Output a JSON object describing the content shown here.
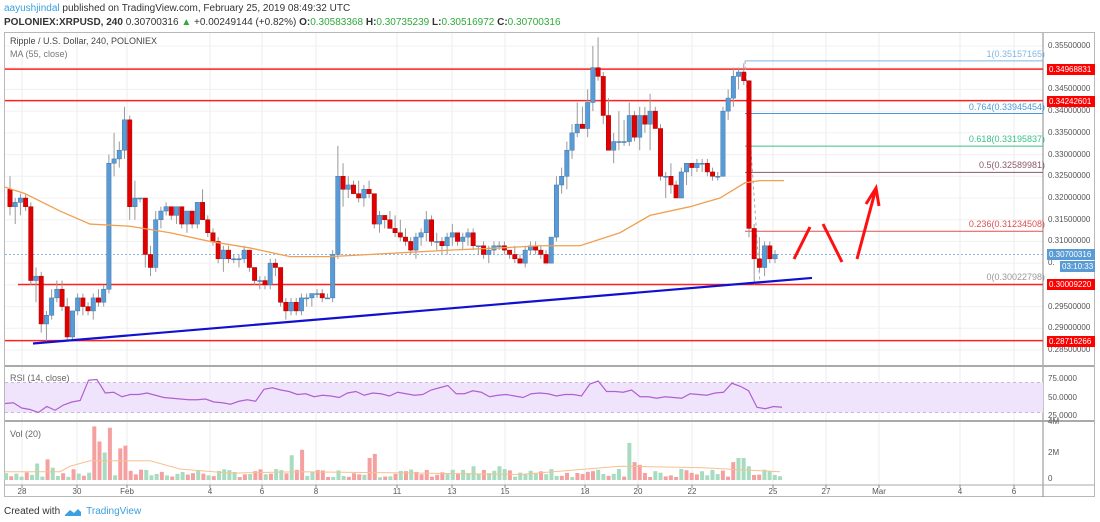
{
  "header": {
    "author": "aayushjindal",
    "published": "published on TradingView.com, February 25, 2019 08:49:32 UTC",
    "symbol": "POLONIEX:XRPUSD, 240",
    "last": "0.30700316",
    "change_arrow": "▲",
    "change": "+0.00249144 (+0.82%)",
    "o_label": "O:",
    "o": "0.30583368",
    "h_label": "H:",
    "h": "0.30735239",
    "l_label": "L:",
    "l": "0.30516972",
    "c_label": "C:",
    "c": "0.30700316"
  },
  "chart": {
    "title": "Ripple / U.S. Dollar, 240, POLONIEX",
    "ma_legend": "MA (55, close)",
    "rsi_legend": "RSI (14, close)",
    "vol_legend": "Vol (20)"
  },
  "price_axis": {
    "ticks": [
      "0.35500000",
      "0.34500000",
      "0.34000000",
      "0.33500000",
      "0.33000000",
      "0.32500000",
      "0.32000000",
      "0.31500000",
      "0.31000000",
      "0.29500000",
      "0.29000000",
      "0.28500000"
    ],
    "tags": [
      {
        "value": "0.34968831",
        "color": "#ff0000"
      },
      {
        "value": "0.34242601",
        "color": "#ff0000"
      },
      {
        "value": "0.30700316",
        "color": "#5b9bd5"
      },
      {
        "value": "03:10:33",
        "color": "#5b9bd5"
      },
      {
        "value": "0.30009220",
        "color": "#ff0000"
      },
      {
        "value": "0.28716266",
        "color": "#ff0000"
      }
    ]
  },
  "fib_levels": [
    {
      "label": "1(0.35157165)",
      "color": "#7fb8e0"
    },
    {
      "label": "0.764(0.33945454)",
      "color": "#4a9ad8"
    },
    {
      "label": "0.618(0.33195837)",
      "color": "#3cc08a"
    },
    {
      "label": "0.5(0.32589981)",
      "color": "#8a5a6a"
    },
    {
      "label": "0.236(0.31234508)",
      "color": "#e05050"
    },
    {
      "label": "0(0.30022798)",
      "color": "#999999"
    }
  ],
  "rsi_axis": {
    "ticks": [
      "75.0000",
      "50.0000",
      "25.0000"
    ]
  },
  "vol_axis": {
    "ticks": [
      "4M",
      "2M",
      "0"
    ]
  },
  "date_axis": {
    "labels": [
      "28",
      "30",
      "Feb",
      "4",
      "6",
      "8",
      "11",
      "13",
      "15",
      "18",
      "20",
      "22",
      "25",
      "27",
      "Mar",
      "4",
      "6"
    ]
  },
  "footer": {
    "created_with": "Created with",
    "brand": "TradingView"
  },
  "colors": {
    "up": "#5b9bd5",
    "down": "#e00000",
    "ma": "#f0a050",
    "trendline": "#1010d0",
    "hline": "#ff2020",
    "rsi": "#b060d0",
    "rsi_band": "#f0e4fc"
  },
  "chart_data": {
    "type": "candlestick",
    "title": "Ripple / U.S. Dollar, 240, POLONIEX",
    "symbol": "XRPUSD",
    "timeframe": "240",
    "x_labels": [
      "28",
      "30",
      "Feb",
      "4",
      "6",
      "8",
      "11",
      "13",
      "15",
      "18",
      "20",
      "22",
      "25",
      "27",
      "Mar",
      "4",
      "6"
    ],
    "ylim": [
      0.283,
      0.358
    ],
    "last_price": 0.30700316,
    "ohlc_last": {
      "open": 0.30583368,
      "high": 0.30735239,
      "low": 0.30516972,
      "close": 0.30700316
    },
    "horizontal_levels": [
      0.34968831,
      0.34242601,
      0.3000922,
      0.28716266
    ],
    "fibonacci": [
      {
        "ratio": 1,
        "price": 0.35157165
      },
      {
        "ratio": 0.764,
        "price": 0.33945454
      },
      {
        "ratio": 0.618,
        "price": 0.33195837
      },
      {
        "ratio": 0.5,
        "price": 0.32589981
      },
      {
        "ratio": 0.236,
        "price": 0.31234508
      },
      {
        "ratio": 0,
        "price": 0.30022798
      }
    ],
    "trendline": {
      "from": {
        "x": "28",
        "y": 0.2865
      },
      "to": {
        "x": "25",
        "y": 0.301
      }
    },
    "indicators": [
      {
        "name": "MA (55, close)",
        "approx": [
          0.323,
          0.317,
          0.311,
          0.309,
          0.307,
          0.306,
          0.306,
          0.306,
          0.307,
          0.307,
          0.309,
          0.315,
          0.32,
          0.325
        ]
      },
      {
        "name": "RSI (14, close)",
        "ylim": [
          0,
          100
        ],
        "levels": [
          70,
          30
        ],
        "approx": [
          40,
          30,
          45,
          72,
          55,
          52,
          50,
          45,
          43,
          48,
          70,
          55,
          52,
          50,
          55,
          72,
          60,
          52,
          55,
          70,
          35,
          37
        ]
      },
      {
        "name": "Vol (20)",
        "ylim": [
          0,
          4000000
        ],
        "ticks": [
          "0",
          "2M",
          "4M"
        ]
      }
    ],
    "annotations": [
      "zig-zag red arrow projection upward toward 0.325"
    ]
  }
}
